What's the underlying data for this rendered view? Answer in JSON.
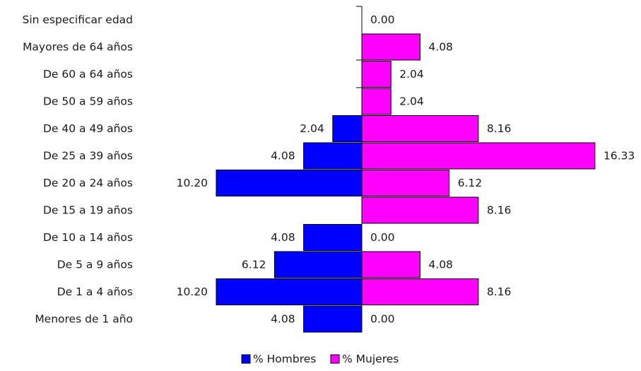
{
  "chart_data": {
    "type": "bar",
    "orientation": "horizontal",
    "layout": "population-pyramid",
    "title": "",
    "xlabel": "",
    "ylabel": "",
    "categories": [
      "Sin especificar edad",
      "Mayores de 64 años",
      "De 60 a 64 años",
      "De 50 a 59 años",
      "De 40 a 49 años",
      "De 25 a 39 años",
      "De 20 a 24 años",
      "De 15 a 19 años",
      "De 10 a 14 años",
      "De 5 a 9 años",
      "De 1 a 4 años",
      "Menores de 1 año"
    ],
    "series": [
      {
        "name": "% Hombres",
        "side": "left",
        "color": "#0000ff",
        "values": [
          null,
          null,
          null,
          null,
          2.04,
          4.08,
          10.2,
          null,
          4.08,
          6.12,
          10.2,
          4.08
        ],
        "labels": [
          "",
          "",
          "",
          "",
          "2.04",
          "4.08",
          "10.20",
          "",
          "4.08",
          "6.12",
          "10.20",
          "4.08"
        ]
      },
      {
        "name": "% Mujeres",
        "side": "right",
        "color": "#ff00ff",
        "values": [
          0.0,
          4.08,
          2.04,
          2.04,
          8.16,
          16.33,
          6.12,
          8.16,
          0.0,
          4.08,
          8.16,
          0.0
        ],
        "labels": [
          "0.00",
          "4.08",
          "2.04",
          "2.04",
          "8.16",
          "16.33",
          "6.12",
          "8.16",
          "0.00",
          "4.08",
          "8.16",
          "0.00"
        ]
      }
    ],
    "legend_position": "bottom",
    "grid": false
  }
}
